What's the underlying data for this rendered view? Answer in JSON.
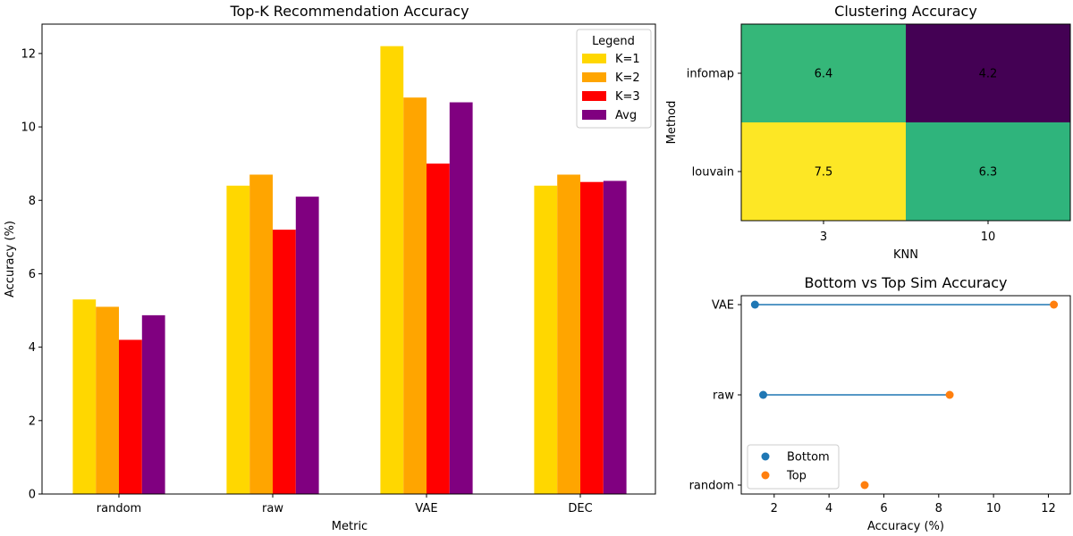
{
  "chart_data": [
    {
      "type": "bar",
      "title": "Top-K Recommendation Accuracy",
      "xlabel": "Metric",
      "ylabel": "Accuracy (%)",
      "categories": [
        "random",
        "raw",
        "VAE",
        "DEC"
      ],
      "ylim": [
        0,
        12.8
      ],
      "yticks": [
        "0",
        "2",
        "4",
        "6",
        "8",
        "10",
        "12"
      ],
      "legend_title": "Legend",
      "legend_position": "top-right",
      "series": [
        {
          "name": "K=1",
          "color": "#ffd700",
          "values": [
            5.3,
            8.4,
            12.2,
            8.4
          ]
        },
        {
          "name": "K=2",
          "color": "#ffa500",
          "values": [
            5.1,
            8.7,
            10.8,
            8.7
          ]
        },
        {
          "name": "K=3",
          "color": "#ff0000",
          "values": [
            4.2,
            7.2,
            9.0,
            8.5
          ]
        },
        {
          "name": "Avg",
          "color": "#800080",
          "values": [
            4.87,
            8.1,
            10.67,
            8.53
          ]
        }
      ]
    },
    {
      "type": "heatmap",
      "title": "Clustering Accuracy",
      "xlabel": "KNN",
      "ylabel": "Method",
      "x_categories": [
        "3",
        "10"
      ],
      "y_categories": [
        "infomap",
        "louvain"
      ],
      "cells": [
        {
          "row": 0,
          "col": 0,
          "value": 6.4,
          "label": "6.4",
          "color": "#35b779"
        },
        {
          "row": 0,
          "col": 1,
          "value": 4.2,
          "label": "4.2",
          "color": "#440154"
        },
        {
          "row": 1,
          "col": 0,
          "value": 7.5,
          "label": "7.5",
          "color": "#fde725"
        },
        {
          "row": 1,
          "col": 1,
          "value": 6.3,
          "label": "6.3",
          "color": "#2fb47c"
        }
      ]
    },
    {
      "type": "scatter",
      "title": "Bottom vs Top Sim Accuracy",
      "xlabel": "Accuracy (%)",
      "categories": [
        "random",
        "raw",
        "VAE"
      ],
      "xlim": [
        0.8,
        12.8
      ],
      "xticks": [
        "2",
        "4",
        "6",
        "8",
        "10",
        "12"
      ],
      "legend_position": "lower-left",
      "line_color": "#1f77b4",
      "series": [
        {
          "name": "Bottom",
          "color": "#1f77b4",
          "values": [
            null,
            1.6,
            1.3
          ]
        },
        {
          "name": "Top",
          "color": "#ff7f0e",
          "values": [
            5.3,
            8.4,
            12.2
          ]
        }
      ]
    }
  ]
}
